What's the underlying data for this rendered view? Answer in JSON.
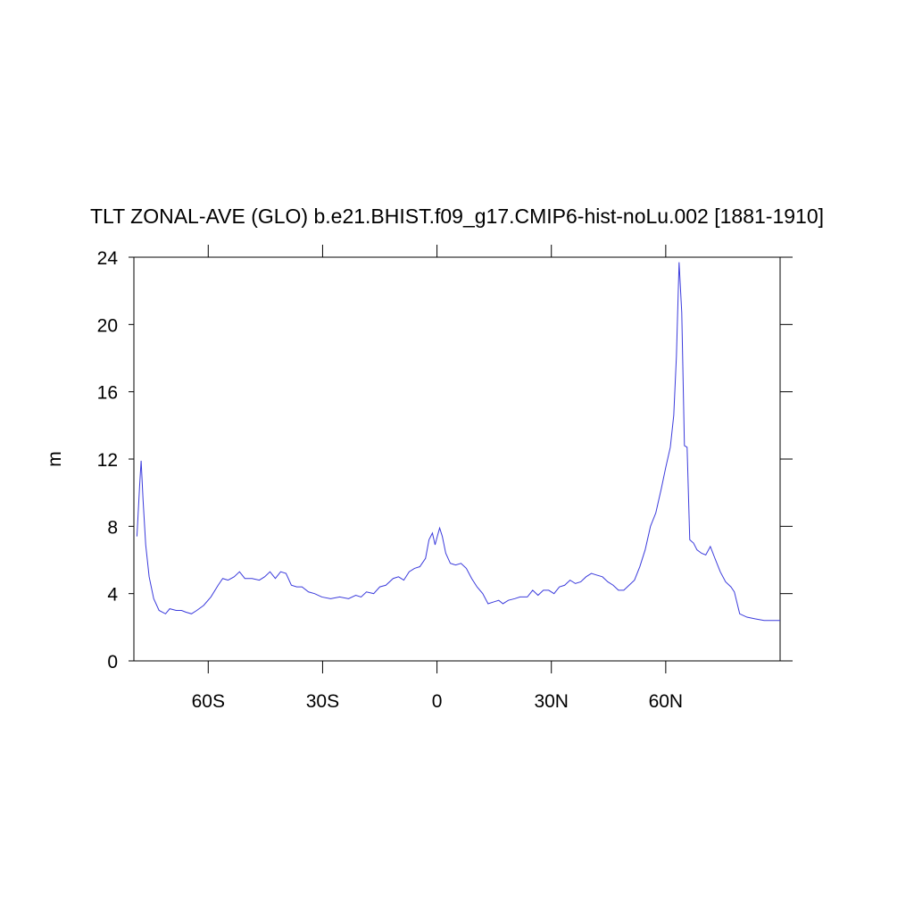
{
  "chart_data": {
    "type": "line",
    "title": "TLT ZONAL-AVE (GLO) b.e21.BHIST.f09_g17.CMIP6-hist-noLu.002 [1881-1910]",
    "y_label": "m",
    "xlim": [
      -79.5,
      90
    ],
    "ylim": [
      0,
      24
    ],
    "xticks": [
      {
        "value": -60,
        "label": "60S"
      },
      {
        "value": -30,
        "label": "30S"
      },
      0,
      {
        "value": 30,
        "label": "30N"
      },
      {
        "value": 60,
        "label": "60N"
      }
    ],
    "yticks": [
      0,
      4,
      8,
      12,
      16,
      20,
      24
    ],
    "series": [
      {
        "color": "#3b3bdc",
        "x": [
          -78.7,
          -78.0,
          -77.6,
          -77.1,
          -76.4,
          -75.5,
          -74.3,
          -72.9,
          -71.2,
          -70.1,
          -68.4,
          -67.0,
          -65.9,
          -64.4,
          -63.0,
          -61.2,
          -59.3,
          -57.4,
          -56.2,
          -54.8,
          -53.2,
          -51.8,
          -50.4,
          -48.5,
          -46.6,
          -45.2,
          -43.8,
          -42.4,
          -41.0,
          -39.6,
          -38.2,
          -36.8,
          -35.4,
          -33.7,
          -32.1,
          -30.2,
          -27.9,
          -25.5,
          -23.2,
          -21.3,
          -19.9,
          -18.5,
          -16.6,
          -15.0,
          -13.4,
          -11.5,
          -10.1,
          -8.7,
          -7.3,
          -5.9,
          -4.5,
          -3.0,
          -2.1,
          -1.2,
          -0.5,
          0.2,
          0.7,
          1.4,
          2.3,
          3.5,
          4.9,
          6.3,
          7.7,
          9.1,
          10.5,
          12.0,
          13.4,
          14.8,
          16.2,
          17.3,
          18.7,
          20.4,
          21.8,
          23.7,
          25.1,
          26.5,
          27.9,
          29.3,
          30.7,
          32.1,
          33.5,
          34.9,
          36.3,
          37.7,
          39.1,
          40.5,
          41.9,
          43.4,
          44.8,
          46.2,
          47.6,
          49.0,
          50.4,
          51.8,
          53.2,
          54.6,
          56.0,
          57.4,
          58.8,
          60.0,
          61.2,
          62.1,
          62.8,
          63.5,
          64.2,
          64.9,
          65.6,
          66.3,
          67.3,
          68.2,
          69.4,
          70.5,
          71.7,
          72.9,
          74.3,
          75.7,
          77.1,
          78.0,
          79.4,
          81.3,
          83.4,
          85.8,
          90.0
        ],
        "values": [
          7.4,
          10.4,
          11.9,
          9.6,
          6.9,
          5.0,
          3.7,
          3.0,
          2.8,
          3.1,
          3.0,
          3.0,
          2.9,
          2.8,
          3.0,
          3.3,
          3.8,
          4.5,
          4.9,
          4.8,
          5.0,
          5.3,
          4.9,
          4.9,
          4.8,
          5.0,
          5.3,
          4.9,
          5.3,
          5.2,
          4.5,
          4.4,
          4.4,
          4.1,
          4.0,
          3.8,
          3.7,
          3.8,
          3.7,
          3.9,
          3.8,
          4.1,
          4.0,
          4.4,
          4.5,
          4.9,
          5.0,
          4.8,
          5.3,
          5.5,
          5.6,
          6.1,
          7.2,
          7.6,
          6.9,
          7.5,
          7.9,
          7.4,
          6.4,
          5.8,
          5.7,
          5.8,
          5.5,
          4.9,
          4.4,
          4.0,
          3.4,
          3.5,
          3.6,
          3.4,
          3.6,
          3.7,
          3.8,
          3.8,
          4.2,
          3.9,
          4.2,
          4.2,
          4.0,
          4.4,
          4.5,
          4.8,
          4.6,
          4.7,
          5.0,
          5.2,
          5.1,
          5.0,
          4.7,
          4.5,
          4.2,
          4.2,
          4.5,
          4.8,
          5.6,
          6.6,
          8.0,
          8.8,
          10.2,
          11.5,
          12.7,
          14.6,
          18.1,
          23.7,
          20.7,
          12.8,
          12.7,
          7.2,
          7.0,
          6.6,
          6.4,
          6.3,
          6.8,
          6.1,
          5.3,
          4.7,
          4.4,
          4.1,
          2.8,
          2.6,
          2.5,
          2.4,
          2.4
        ]
      }
    ]
  }
}
